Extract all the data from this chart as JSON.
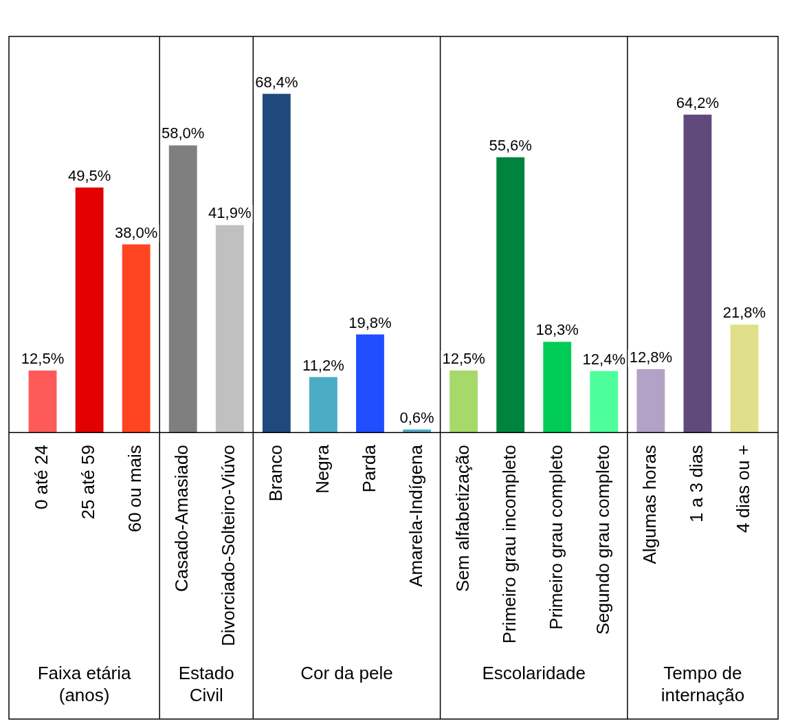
{
  "chart_data": {
    "type": "bar",
    "categories": [
      "0 até 24",
      "25 até 59",
      "60 ou mais",
      "Casado-Amasiado",
      "Divorciado-Solteiro-Viúvo",
      "Branco",
      "Negra",
      "Parda",
      "Amarela-Indígena",
      "Sem alfabetização",
      "Primeiro grau incompleto",
      "Primeiro grau completo",
      "Segundo grau completo",
      "Algumas horas",
      "1 a 3 dias",
      "4 dias ou +"
    ],
    "values": [
      12.5,
      49.5,
      38.0,
      58.0,
      41.9,
      68.4,
      11.2,
      19.8,
      0.6,
      12.5,
      55.6,
      18.3,
      12.4,
      12.8,
      64.2,
      21.8
    ],
    "colors": [
      "#ff5a5a",
      "#e30000",
      "#ff4422",
      "#7f7f7f",
      "#c0c0c0",
      "#1f497d",
      "#4bacc6",
      "#1f4dff",
      "#4bacc6",
      "#a6d96a",
      "#00843d",
      "#00cc55",
      "#4dff9a",
      "#b3a2c7",
      "#604a7b",
      "#e0e08a"
    ],
    "value_labels": [
      "12,5%",
      "49,5%",
      "38,0%",
      "58,0%",
      "41,9%",
      "68,4%",
      "11,2%",
      "19,8%",
      "0,6%",
      "12,5%",
      "55,6%",
      "18,3%",
      "12,4%",
      "12,8%",
      "64,2%",
      "21,8%"
    ],
    "ylim": [
      0,
      80
    ],
    "grid": false,
    "legend": false,
    "annotations": [
      "Faixa etária (anos)",
      "Estado Civil",
      "Cor da pele",
      "Escolaridade",
      "Tempo de internação"
    ]
  }
}
